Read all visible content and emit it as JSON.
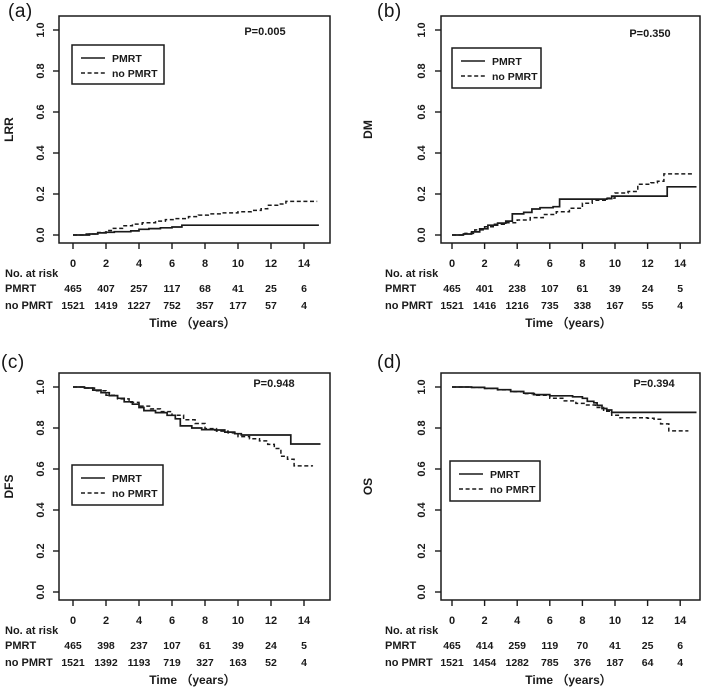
{
  "figure": {
    "background": "#ffffff",
    "ink": "#1a1a1a"
  },
  "chart_data": [
    {
      "type": "line",
      "panel_label": "(a)",
      "ylabel": "LRR",
      "xlabel": "Time （years）",
      "p_value": "P=0.005",
      "x_ticks": [
        "0",
        "2",
        "4",
        "6",
        "8",
        "10",
        "12",
        "14"
      ],
      "y_ticks": [
        "0.0",
        "0.2",
        "0.4",
        "0.6",
        "0.8",
        "1.0"
      ],
      "xlim": [
        0,
        15.5
      ],
      "ylim": [
        0,
        1
      ],
      "legend": {
        "position": "upper-left",
        "entries": [
          {
            "label": "PMRT",
            "line_style": "solid"
          },
          {
            "label": "no PMRT",
            "line_style": "dashed"
          }
        ]
      },
      "series": [
        {
          "name": "PMRT",
          "line_style": "solid",
          "step_points": [
            [
              0,
              0
            ],
            [
              1,
              0.005
            ],
            [
              1.5,
              0.01
            ],
            [
              2,
              0.013
            ],
            [
              2.5,
              0.016
            ],
            [
              3.5,
              0.02
            ],
            [
              4,
              0.028
            ],
            [
              4.6,
              0.031
            ],
            [
              5.3,
              0.035
            ],
            [
              6,
              0.039
            ],
            [
              6.6,
              0.048
            ],
            [
              14.9,
              0.048
            ]
          ]
        },
        {
          "name": "no PMRT",
          "line_style": "dashed",
          "step_points": [
            [
              0,
              0
            ],
            [
              0.8,
              0.005
            ],
            [
              1.4,
              0.012
            ],
            [
              2,
              0.022
            ],
            [
              2.4,
              0.032
            ],
            [
              3,
              0.045
            ],
            [
              3.6,
              0.053
            ],
            [
              4.2,
              0.06
            ],
            [
              5,
              0.068
            ],
            [
              5.6,
              0.075
            ],
            [
              6.2,
              0.08
            ],
            [
              7,
              0.09
            ],
            [
              7.6,
              0.097
            ],
            [
              8.2,
              0.103
            ],
            [
              9,
              0.108
            ],
            [
              10,
              0.113
            ],
            [
              10.8,
              0.12
            ],
            [
              11.4,
              0.128
            ],
            [
              11.8,
              0.145
            ],
            [
              12.4,
              0.151
            ],
            [
              12.9,
              0.164
            ],
            [
              14.8,
              0.164
            ]
          ]
        }
      ],
      "risk_table": {
        "title": "No. at risk",
        "time_points": [
          0,
          2,
          4,
          6,
          8,
          10,
          12,
          14
        ],
        "rows": [
          {
            "label": "PMRT",
            "counts": [
              465,
              407,
              257,
              117,
              68,
              41,
              25,
              6
            ]
          },
          {
            "label": "no PMRT",
            "counts": [
              1521,
              1419,
              1227,
              752,
              357,
              177,
              57,
              4
            ]
          }
        ]
      }
    },
    {
      "type": "line",
      "panel_label": "(b)",
      "ylabel": "DM",
      "xlabel": "Time （years）",
      "p_value": "P=0.350",
      "x_ticks": [
        "0",
        "2",
        "4",
        "6",
        "8",
        "10",
        "12",
        "14"
      ],
      "y_ticks": [
        "0.0",
        "0.2",
        "0.4",
        "0.6",
        "0.8",
        "1.0"
      ],
      "xlim": [
        0,
        15.5
      ],
      "ylim": [
        0,
        1
      ],
      "legend": {
        "position": "upper-left",
        "entries": [
          {
            "label": "PMRT",
            "line_style": "solid"
          },
          {
            "label": "no PMRT",
            "line_style": "dashed"
          }
        ]
      },
      "series": [
        {
          "name": "PMRT",
          "line_style": "solid",
          "step_points": [
            [
              0,
              0
            ],
            [
              0.7,
              0.005
            ],
            [
              1.2,
              0.015
            ],
            [
              1.7,
              0.03
            ],
            [
              2.2,
              0.048
            ],
            [
              2.8,
              0.058
            ],
            [
              3.3,
              0.068
            ],
            [
              3.7,
              0.103
            ],
            [
              4.4,
              0.11
            ],
            [
              4.9,
              0.127
            ],
            [
              5.4,
              0.133
            ],
            [
              6.2,
              0.138
            ],
            [
              6.6,
              0.175
            ],
            [
              9.5,
              0.177
            ],
            [
              9.8,
              0.19
            ],
            [
              13,
              0.19
            ],
            [
              13.2,
              0.235
            ],
            [
              15,
              0.235
            ]
          ]
        },
        {
          "name": "no PMRT",
          "line_style": "dashed",
          "step_points": [
            [
              0,
              0
            ],
            [
              0.8,
              0.008
            ],
            [
              1.4,
              0.025
            ],
            [
              2,
              0.04
            ],
            [
              2.6,
              0.052
            ],
            [
              3.2,
              0.06
            ],
            [
              4,
              0.073
            ],
            [
              4.8,
              0.085
            ],
            [
              5.6,
              0.1
            ],
            [
              6.4,
              0.113
            ],
            [
              7.2,
              0.13
            ],
            [
              8,
              0.155
            ],
            [
              8.6,
              0.17
            ],
            [
              9.4,
              0.18
            ],
            [
              10,
              0.205
            ],
            [
              10.8,
              0.212
            ],
            [
              11.4,
              0.248
            ],
            [
              12.2,
              0.255
            ],
            [
              12.6,
              0.262
            ],
            [
              13,
              0.298
            ],
            [
              14.8,
              0.298
            ]
          ]
        }
      ],
      "risk_table": {
        "title": "No. at risk",
        "time_points": [
          0,
          2,
          4,
          6,
          8,
          10,
          12,
          14
        ],
        "rows": [
          {
            "label": "PMRT",
            "counts": [
              465,
              401,
              238,
              107,
              61,
              39,
              24,
              5
            ]
          },
          {
            "label": "no PMRT",
            "counts": [
              1521,
              1416,
              1216,
              735,
              338,
              167,
              55,
              4
            ]
          }
        ]
      }
    },
    {
      "type": "line",
      "panel_label": "(c)",
      "ylabel": "DFS",
      "xlabel": "Time （years）",
      "p_value": "P=0.948",
      "x_ticks": [
        "0",
        "2",
        "4",
        "6",
        "8",
        "10",
        "12",
        "14"
      ],
      "y_ticks": [
        "0.0",
        "0.2",
        "0.4",
        "0.6",
        "0.8",
        "1.0"
      ],
      "xlim": [
        0,
        15.5
      ],
      "ylim": [
        0,
        1
      ],
      "legend": {
        "position": "center-left",
        "entries": [
          {
            "label": "PMRT",
            "line_style": "solid"
          },
          {
            "label": "no PMRT",
            "line_style": "dashed"
          }
        ]
      },
      "series": [
        {
          "name": "PMRT",
          "line_style": "solid",
          "step_points": [
            [
              0,
              1
            ],
            [
              0.7,
              0.995
            ],
            [
              1.2,
              0.985
            ],
            [
              1.7,
              0.972
            ],
            [
              2.2,
              0.958
            ],
            [
              2.7,
              0.945
            ],
            [
              3.1,
              0.928
            ],
            [
              3.6,
              0.916
            ],
            [
              4,
              0.9
            ],
            [
              4.3,
              0.885
            ],
            [
              5,
              0.875
            ],
            [
              5.7,
              0.862
            ],
            [
              6.2,
              0.845
            ],
            [
              6.5,
              0.81
            ],
            [
              7.2,
              0.8
            ],
            [
              7.8,
              0.792
            ],
            [
              8.6,
              0.79
            ],
            [
              9.2,
              0.78
            ],
            [
              9.8,
              0.772
            ],
            [
              10.2,
              0.766
            ],
            [
              13,
              0.766
            ],
            [
              13.2,
              0.722
            ],
            [
              15,
              0.722
            ]
          ]
        },
        {
          "name": "no PMRT",
          "line_style": "dashed",
          "step_points": [
            [
              0,
              1
            ],
            [
              0.7,
              0.995
            ],
            [
              1.3,
              0.982
            ],
            [
              2,
              0.96
            ],
            [
              2.7,
              0.942
            ],
            [
              3.4,
              0.925
            ],
            [
              4,
              0.907
            ],
            [
              4.7,
              0.893
            ],
            [
              5.3,
              0.88
            ],
            [
              6,
              0.862
            ],
            [
              6.7,
              0.84
            ],
            [
              7.4,
              0.822
            ],
            [
              8,
              0.797
            ],
            [
              8.7,
              0.785
            ],
            [
              9.4,
              0.776
            ],
            [
              10,
              0.758
            ],
            [
              10.7,
              0.748
            ],
            [
              11.3,
              0.737
            ],
            [
              11.8,
              0.72
            ],
            [
              12.2,
              0.7
            ],
            [
              12.6,
              0.662
            ],
            [
              13,
              0.648
            ],
            [
              13.4,
              0.615
            ],
            [
              14.5,
              0.612
            ]
          ]
        }
      ],
      "risk_table": {
        "title": "No. at risk",
        "time_points": [
          0,
          2,
          4,
          6,
          8,
          10,
          12,
          14
        ],
        "rows": [
          {
            "label": "PMRT",
            "counts": [
              465,
              398,
              237,
              107,
              61,
              39,
              24,
              5
            ]
          },
          {
            "label": "no PMRT",
            "counts": [
              1521,
              1392,
              1193,
              719,
              327,
              163,
              52,
              4
            ]
          }
        ]
      }
    },
    {
      "type": "line",
      "panel_label": "(d)",
      "ylabel": "OS",
      "xlabel": "Time （years）",
      "p_value": "P=0.394",
      "x_ticks": [
        "0",
        "2",
        "4",
        "6",
        "8",
        "10",
        "12",
        "14"
      ],
      "y_ticks": [
        "0.0",
        "0.2",
        "0.4",
        "0.6",
        "0.8",
        "1.0"
      ],
      "xlim": [
        0,
        15.5
      ],
      "ylim": [
        0,
        1
      ],
      "legend": {
        "position": "center-left",
        "entries": [
          {
            "label": "PMRT",
            "line_style": "solid"
          },
          {
            "label": "no PMRT",
            "line_style": "dashed"
          }
        ]
      },
      "series": [
        {
          "name": "PMRT",
          "line_style": "solid",
          "step_points": [
            [
              0,
              1
            ],
            [
              1.2,
              0.998
            ],
            [
              2,
              0.993
            ],
            [
              2.8,
              0.987
            ],
            [
              3.6,
              0.978
            ],
            [
              4.4,
              0.97
            ],
            [
              5,
              0.963
            ],
            [
              6,
              0.957
            ],
            [
              7.4,
              0.952
            ],
            [
              8,
              0.945
            ],
            [
              8.3,
              0.93
            ],
            [
              8.7,
              0.923
            ],
            [
              8.9,
              0.91
            ],
            [
              9.2,
              0.895
            ],
            [
              9.5,
              0.888
            ],
            [
              9.8,
              0.876
            ],
            [
              15,
              0.876
            ]
          ]
        },
        {
          "name": "no PMRT",
          "line_style": "dashed",
          "step_points": [
            [
              0,
              1
            ],
            [
              1.2,
              0.998
            ],
            [
              2,
              0.993
            ],
            [
              2.8,
              0.986
            ],
            [
              3.6,
              0.977
            ],
            [
              4.4,
              0.968
            ],
            [
              5.2,
              0.96
            ],
            [
              6,
              0.945
            ],
            [
              6.8,
              0.932
            ],
            [
              7.6,
              0.92
            ],
            [
              8.2,
              0.912
            ],
            [
              8.8,
              0.9
            ],
            [
              9.3,
              0.882
            ],
            [
              9.8,
              0.862
            ],
            [
              10.3,
              0.85
            ],
            [
              12,
              0.848
            ],
            [
              12.4,
              0.843
            ],
            [
              12.8,
              0.82
            ],
            [
              13.3,
              0.786
            ],
            [
              14.5,
              0.786
            ]
          ]
        }
      ],
      "risk_table": {
        "title": "No. at risk",
        "time_points": [
          0,
          2,
          4,
          6,
          8,
          10,
          12,
          14
        ],
        "rows": [
          {
            "label": "PMRT",
            "counts": [
              465,
              414,
              259,
              119,
              70,
              41,
              25,
              6
            ]
          },
          {
            "label": "no PMRT",
            "counts": [
              1521,
              1454,
              1282,
              785,
              376,
              187,
              64,
              4
            ]
          }
        ]
      }
    }
  ]
}
